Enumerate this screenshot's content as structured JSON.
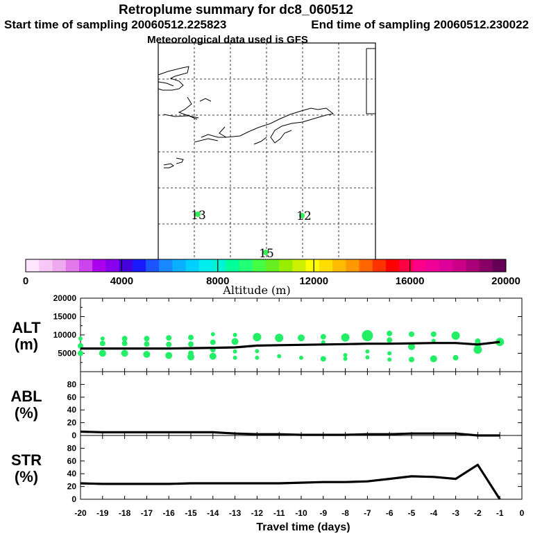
{
  "title": "Retroplume summary for dc8_060512",
  "start_label": "Start time of sampling 20060512.225823",
  "end_label": "End time of sampling 20060512.230022",
  "met_label": "Meteorological data used is GFS",
  "map": {
    "markers": [
      {
        "label": "13",
        "color": "#33ee55"
      },
      {
        "label": "12",
        "color": "#33ee55"
      },
      {
        "label": "15",
        "color": "#33ee55"
      }
    ]
  },
  "colorbar": {
    "title": "Altitude (m)",
    "tick_labels": [
      "0",
      "4000",
      "8000",
      "12000",
      "16000",
      "20000"
    ],
    "colors": [
      "#ffe6ff",
      "#f7c8f7",
      "#eeaaee",
      "#e27ae9",
      "#cc44ee",
      "#aa00ee",
      "#8800ee",
      "#4400dd",
      "#1a1aff",
      "#1a55ff",
      "#1a88ff",
      "#0aafff",
      "#00d0ff",
      "#00eeee",
      "#00f5d5",
      "#00ff99",
      "#22ff77",
      "#44ff44",
      "#66ee22",
      "#99ee00",
      "#ccf000",
      "#ffff00",
      "#ffdd00",
      "#ffbb00",
      "#ff9900",
      "#ff6600",
      "#ff3300",
      "#ff0000",
      "#ff0044",
      "#ff0088",
      "#ee0099",
      "#dd0099",
      "#cc0088",
      "#aa0077",
      "#880066",
      "#660055"
    ]
  },
  "chart_data": [
    {
      "type": "scatter+line",
      "panel": "ALT",
      "ylabel": "ALT\n(m)",
      "ylabel_lines": [
        "ALT",
        "(m)"
      ],
      "xlim": [
        -20,
        0
      ],
      "ylim": [
        0,
        20000
      ],
      "ytick_labels": [
        "5000",
        "10000",
        "15000",
        "20000"
      ],
      "line": {
        "x": [
          -20,
          -19,
          -18,
          -17,
          -16,
          -15,
          -14,
          -13,
          -12,
          -11,
          -10,
          -9,
          -8,
          -7,
          -6,
          -5,
          -4,
          -3,
          -2,
          -1
        ],
        "y": [
          6300,
          6300,
          6300,
          6300,
          6300,
          6400,
          6500,
          6600,
          7100,
          7200,
          7300,
          7400,
          7500,
          7600,
          7600,
          7700,
          7800,
          7800,
          7400,
          8100
        ]
      },
      "points": [
        {
          "x": -20,
          "y": 9000,
          "s": 3
        },
        {
          "x": -20,
          "y": 7000,
          "s": 4
        },
        {
          "x": -20,
          "y": 5000,
          "s": 4
        },
        {
          "x": -19,
          "y": 9000,
          "s": 3
        },
        {
          "x": -19,
          "y": 7700,
          "s": 4
        },
        {
          "x": -19,
          "y": 5000,
          "s": 5
        },
        {
          "x": -18,
          "y": 9000,
          "s": 4
        },
        {
          "x": -18,
          "y": 7700,
          "s": 4
        },
        {
          "x": -18,
          "y": 5000,
          "s": 5
        },
        {
          "x": -17,
          "y": 9000,
          "s": 4
        },
        {
          "x": -17,
          "y": 7500,
          "s": 4
        },
        {
          "x": -17,
          "y": 4700,
          "s": 5
        },
        {
          "x": -16,
          "y": 9200,
          "s": 4
        },
        {
          "x": -16,
          "y": 7400,
          "s": 4
        },
        {
          "x": -16,
          "y": 4400,
          "s": 5
        },
        {
          "x": -15,
          "y": 9300,
          "s": 4
        },
        {
          "x": -15,
          "y": 7500,
          "s": 4
        },
        {
          "x": -15,
          "y": 5000,
          "s": 4
        },
        {
          "x": -15,
          "y": 4000,
          "s": 5
        },
        {
          "x": -14,
          "y": 10200,
          "s": 3
        },
        {
          "x": -14,
          "y": 8000,
          "s": 4
        },
        {
          "x": -14,
          "y": 6000,
          "s": 4
        },
        {
          "x": -14,
          "y": 4200,
          "s": 5
        },
        {
          "x": -13,
          "y": 10000,
          "s": 3
        },
        {
          "x": -13,
          "y": 8200,
          "s": 5
        },
        {
          "x": -13,
          "y": 5500,
          "s": 3
        },
        {
          "x": -13,
          "y": 3800,
          "s": 3
        },
        {
          "x": -12,
          "y": 9400,
          "s": 6
        },
        {
          "x": -12,
          "y": 5600,
          "s": 3
        },
        {
          "x": -12,
          "y": 3800,
          "s": 3
        },
        {
          "x": -11,
          "y": 9200,
          "s": 6
        },
        {
          "x": -11,
          "y": 4200,
          "s": 3
        },
        {
          "x": -10,
          "y": 9200,
          "s": 5
        },
        {
          "x": -10,
          "y": 3800,
          "s": 3
        },
        {
          "x": -9,
          "y": 9500,
          "s": 4
        },
        {
          "x": -9,
          "y": 8000,
          "s": 3
        },
        {
          "x": -9,
          "y": 3500,
          "s": 4
        },
        {
          "x": -8,
          "y": 9300,
          "s": 6
        },
        {
          "x": -8,
          "y": 4500,
          "s": 3
        },
        {
          "x": -8,
          "y": 3500,
          "s": 3
        },
        {
          "x": -7,
          "y": 9800,
          "s": 8
        },
        {
          "x": -7,
          "y": 5500,
          "s": 3
        },
        {
          "x": -7,
          "y": 3900,
          "s": 3
        },
        {
          "x": -6,
          "y": 10400,
          "s": 4
        },
        {
          "x": -6,
          "y": 8600,
          "s": 4
        },
        {
          "x": -6,
          "y": 5000,
          "s": 3
        },
        {
          "x": -6,
          "y": 3300,
          "s": 3
        },
        {
          "x": -5,
          "y": 10200,
          "s": 4
        },
        {
          "x": -5,
          "y": 6800,
          "s": 5
        },
        {
          "x": -5,
          "y": 3300,
          "s": 4
        },
        {
          "x": -4,
          "y": 10200,
          "s": 4
        },
        {
          "x": -4,
          "y": 8400,
          "s": 3
        },
        {
          "x": -4,
          "y": 3500,
          "s": 5
        },
        {
          "x": -3,
          "y": 9800,
          "s": 6
        },
        {
          "x": -3,
          "y": 3800,
          "s": 4
        },
        {
          "x": -2,
          "y": 8300,
          "s": 4
        },
        {
          "x": -2,
          "y": 7400,
          "s": 5
        },
        {
          "x": -2,
          "y": 6000,
          "s": 6
        },
        {
          "x": -1,
          "y": 8100,
          "s": 6
        }
      ]
    },
    {
      "type": "line",
      "panel": "ABL",
      "ylabel": "ABL\n(%)",
      "ylabel_lines": [
        "ABL",
        "(%)"
      ],
      "xlim": [
        -20,
        0
      ],
      "ylim": [
        0,
        100
      ],
      "ytick_labels": [
        "0",
        "20",
        "40",
        "60",
        "80"
      ],
      "x": [
        -20,
        -19,
        -18,
        -17,
        -16,
        -15,
        -14,
        -13,
        -12,
        -11,
        -10,
        -9,
        -8,
        -7,
        -6,
        -5,
        -4,
        -3,
        -2,
        -1
      ],
      "y": [
        6,
        5,
        5,
        5,
        5,
        5,
        5,
        3,
        2,
        2,
        1,
        1,
        1,
        2,
        2,
        3,
        3,
        3,
        0,
        0
      ]
    },
    {
      "type": "line",
      "panel": "STR",
      "ylabel": "STR\n(%)",
      "ylabel_lines": [
        "STR",
        "(%)"
      ],
      "xlim": [
        -20,
        0
      ],
      "ylim": [
        0,
        100
      ],
      "ytick_labels": [
        "0",
        "20",
        "40",
        "60",
        "80"
      ],
      "xtick_labels": [
        "-20",
        "-19",
        "-18",
        "-17",
        "-16",
        "-15",
        "-14",
        "-13",
        "-12",
        "-11",
        "-10",
        "-9",
        "-8",
        "-7",
        "-6",
        "-5",
        "-4",
        "-3",
        "-2",
        "-1",
        "0"
      ],
      "xlabel": "Travel time (days)",
      "x": [
        -20,
        -19,
        -18,
        -17,
        -16,
        -15,
        -14,
        -13,
        -12,
        -11,
        -10,
        -9,
        -8,
        -7,
        -6,
        -5,
        -4,
        -3,
        -2,
        -1
      ],
      "y": [
        25,
        24,
        24,
        24,
        24,
        25,
        25,
        25,
        25,
        25,
        26,
        27,
        27,
        28,
        32,
        36,
        35,
        32,
        54,
        0
      ]
    }
  ]
}
